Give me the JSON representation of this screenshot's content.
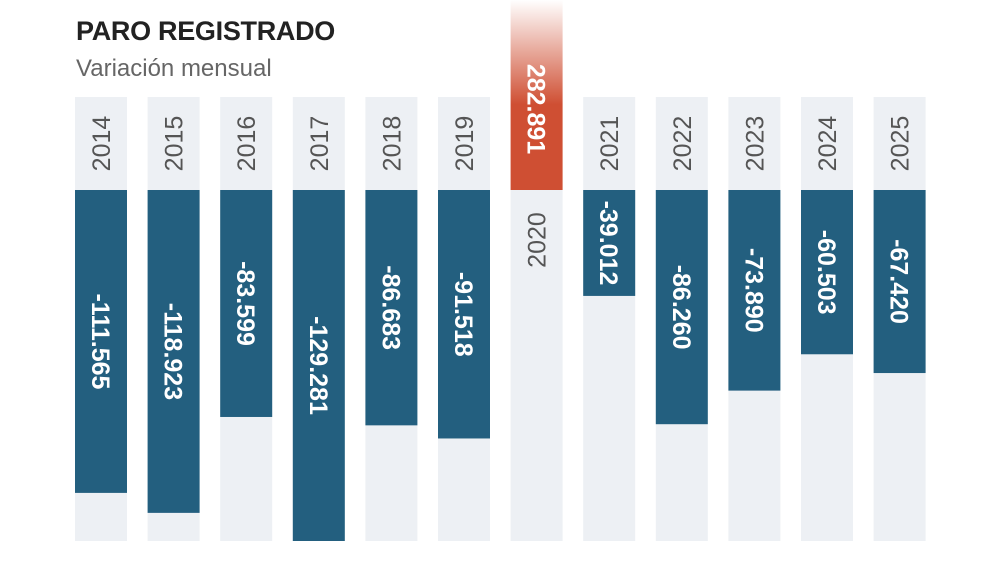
{
  "header": {
    "title": "PARO REGISTRADO",
    "subtitle": "Variación mensual"
  },
  "colors": {
    "negative": "#235f7f",
    "positive": "#cf4f33",
    "track": "#edf0f4",
    "year_text": "#555555",
    "value_text": "#ffffff"
  },
  "chart_data": {
    "type": "bar",
    "title": "PARO REGISTRADO",
    "subtitle": "Variación mensual",
    "xlabel": "",
    "ylabel": "",
    "orientation": "vertical",
    "grid": false,
    "legend": "none",
    "categories": [
      "2014",
      "2015",
      "2016",
      "2017",
      "2018",
      "2019",
      "2020",
      "2021",
      "2022",
      "2023",
      "2024",
      "2025"
    ],
    "values": [
      -111565,
      -118923,
      -83599,
      -129281,
      -86683,
      -91518,
      282891,
      -39012,
      -86260,
      -73890,
      -60503,
      -67420
    ],
    "value_labels": [
      "-111.565",
      "-118.923",
      "-83.599",
      "-129.281",
      "-86.683",
      "-91.518",
      "282.891",
      "-39.012",
      "-86.260",
      "-73.890",
      "-60.503",
      "-67.420"
    ],
    "ylim": [
      -130000,
      70000
    ]
  }
}
